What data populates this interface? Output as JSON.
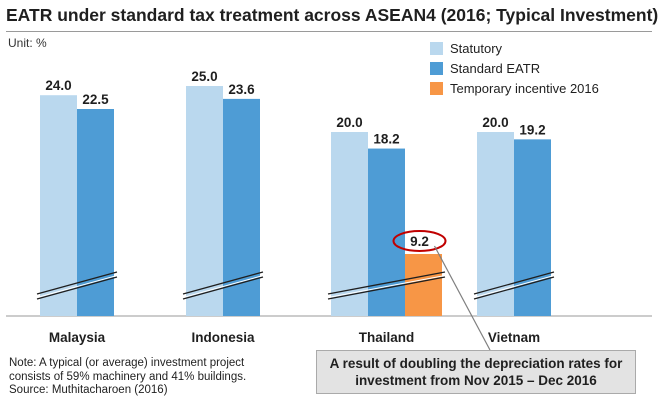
{
  "title": "EATR under standard tax treatment across ASEAN4 (2016; Typical Investment)",
  "unit": "Unit: %",
  "note": {
    "line1": "Note: A typical (or average) investment project",
    "line2": "consists of 59% machinery and 41% buildings.",
    "line3": "Source: Muthitacharoen (2016)"
  },
  "callout": {
    "line1": "A result of doubling the depreciation rates for",
    "line2": "investment from Nov 2015 – Dec 2016"
  },
  "chart_data": {
    "type": "bar",
    "title": "EATR under standard tax treatment across ASEAN4 (2016; Typical Investment)",
    "ylabel": "",
    "xlabel": "",
    "unit": "%",
    "axis_break": true,
    "legend_position": "top-right",
    "categories": [
      "Malaysia",
      "Indonesia",
      "Thailand",
      "Vietnam"
    ],
    "series": [
      {
        "name": "Statutory",
        "color": "#bad8ee",
        "values": [
          24.0,
          25.0,
          20.0,
          20.0
        ],
        "labels": [
          "24.0",
          "25.0",
          "20.0",
          "20.0"
        ]
      },
      {
        "name": "Standard EATR",
        "color": "#4e9cd5",
        "values": [
          22.5,
          23.6,
          18.2,
          19.2
        ],
        "labels": [
          "22.5",
          "23.6",
          "18.2",
          "19.2"
        ]
      },
      {
        "name": "Temporary incentive 2016",
        "color": "#f79646",
        "values": [
          null,
          null,
          9.2,
          null
        ],
        "labels": [
          null,
          null,
          "9.2",
          null
        ]
      }
    ],
    "highlight": {
      "category": "Thailand",
      "series": "Temporary incentive 2016",
      "color": "#c00000"
    }
  }
}
